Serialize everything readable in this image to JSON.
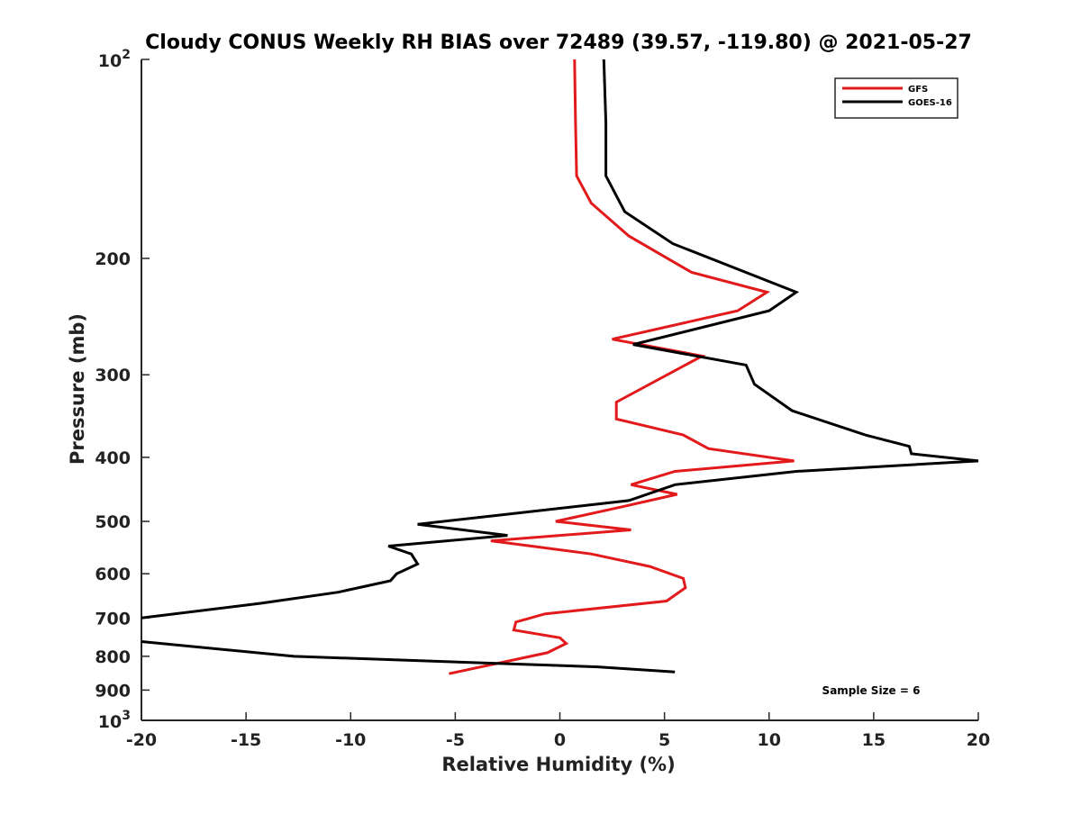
{
  "chart_data": {
    "type": "line",
    "title": "Cloudy CONUS Weekly RH BIAS over 72489 (39.57, -119.80) @ 2021-05-27",
    "xlabel": "Relative Humidity (%)",
    "ylabel": "Pressure (mb)",
    "xlim": [
      -20,
      20
    ],
    "ylim": [
      100,
      1000
    ],
    "y_scale": "log",
    "y_reversed": true,
    "x_ticks": [
      "-20",
      "-15",
      "-10",
      "-5",
      "0",
      "5",
      "10",
      "15",
      "20"
    ],
    "y_ticks": [
      {
        "value": 100,
        "base": "10",
        "exp": "2"
      },
      {
        "value": 200,
        "label": "200"
      },
      {
        "value": 300,
        "label": "300"
      },
      {
        "value": 400,
        "label": "400"
      },
      {
        "value": 500,
        "label": "500"
      },
      {
        "value": 600,
        "label": "600"
      },
      {
        "value": 700,
        "label": "700"
      },
      {
        "value": 800,
        "label": "800"
      },
      {
        "value": 900,
        "label": "900"
      },
      {
        "value": 1000,
        "base": "10",
        "exp": "3"
      }
    ],
    "legend_position": "top-right",
    "annotation": "Sample Size = 6",
    "series": [
      {
        "name": "GFS",
        "color": "#e31a1c",
        "points": [
          [
            0.7,
            100
          ],
          [
            0.75,
            125
          ],
          [
            0.8,
            150
          ],
          [
            1.5,
            165
          ],
          [
            3.3,
            185
          ],
          [
            6.3,
            210
          ],
          [
            9.9,
            225
          ],
          [
            8.5,
            240
          ],
          [
            2.5,
            265
          ],
          [
            6.8,
            281
          ],
          [
            2.7,
            330
          ],
          [
            2.7,
            350
          ],
          [
            5.9,
            370
          ],
          [
            7.1,
            388
          ],
          [
            11.2,
            405
          ],
          [
            5.5,
            420
          ],
          [
            3.4,
            440
          ],
          [
            5.6,
            455
          ],
          [
            3.0,
            475
          ],
          [
            -0.2,
            500
          ],
          [
            3.4,
            515
          ],
          [
            -3.3,
            535
          ],
          [
            1.5,
            560
          ],
          [
            4.3,
            585
          ],
          [
            5.9,
            610
          ],
          [
            6.0,
            630
          ],
          [
            5.1,
            660
          ],
          [
            -0.7,
            690
          ],
          [
            -2.1,
            710
          ],
          [
            -2.2,
            730
          ],
          [
            0.0,
            750
          ],
          [
            0.3,
            765
          ],
          [
            -0.6,
            790
          ],
          [
            -5.3,
            850
          ]
        ]
      },
      {
        "name": "GOES-16",
        "color": "#000000",
        "points": [
          [
            2.1,
            100
          ],
          [
            2.2,
            125
          ],
          [
            2.2,
            150
          ],
          [
            3.1,
            170
          ],
          [
            5.4,
            190
          ],
          [
            11.3,
            225
          ],
          [
            10.0,
            240
          ],
          [
            3.5,
            270
          ],
          [
            8.9,
            290
          ],
          [
            9.3,
            310
          ],
          [
            11.1,
            340
          ],
          [
            14.6,
            370
          ],
          [
            16.7,
            385
          ],
          [
            16.8,
            395
          ],
          [
            20.0,
            405
          ],
          [
            11.3,
            420
          ],
          [
            5.5,
            440
          ],
          [
            3.3,
            465
          ],
          [
            -3.1,
            490
          ],
          [
            -6.8,
            505
          ],
          [
            -2.5,
            525
          ],
          [
            -8.2,
            545
          ],
          [
            -7.1,
            560
          ],
          [
            -6.8,
            580
          ],
          [
            -7.8,
            600
          ],
          [
            -8.1,
            615
          ],
          [
            -10.6,
            640
          ],
          [
            -14.3,
            665
          ],
          [
            -20.0,
            700
          ]
        ]
      },
      {
        "name": "GOES-16",
        "color": "#000000",
        "points": [
          [
            -20.0,
            760
          ],
          [
            -12.7,
            800
          ],
          [
            1.8,
            830
          ],
          [
            5.5,
            845
          ]
        ]
      }
    ]
  }
}
